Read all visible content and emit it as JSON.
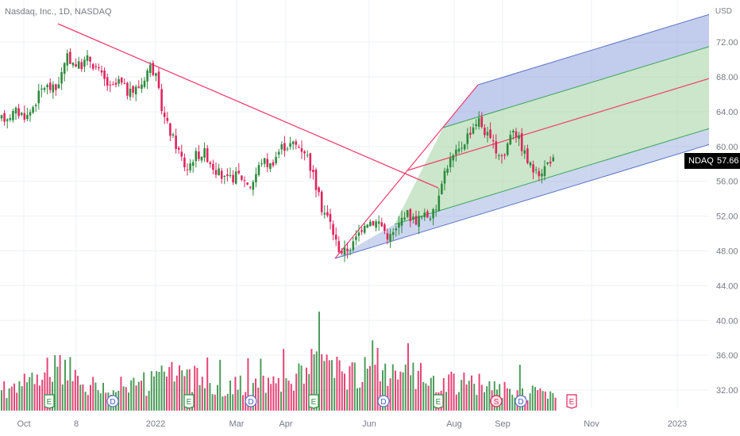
{
  "header": {
    "title": "Nasdaq, Inc., 1D, NASDAQ"
  },
  "price_tag": {
    "symbol": "NDAQ",
    "value": "57.66"
  },
  "colors": {
    "up": "#2e8b3e",
    "down": "#e0245e",
    "trendline": "#f23d6d",
    "pitchfork_median": "#f23d6d",
    "pitchfork_outer_fill": "#8fa3dc",
    "pitchfork_inner_fill": "#b5dcb3",
    "grid": "#eef0f4"
  },
  "chart_data": {
    "type": "candlestick",
    "symbol": "NDAQ",
    "timeframe": "1D",
    "exchange": "NASDAQ",
    "y_axis": {
      "unit_label": "USD",
      "range": [
        31,
        73.2
      ],
      "ticks": [
        32,
        36,
        40,
        44,
        48,
        52,
        56,
        60,
        64,
        68,
        72
      ],
      "tick_labels": [
        "32.00",
        "36.00",
        "40.00",
        "44.00",
        "48.00",
        "52.00",
        "56.00",
        "60.00",
        "64.00",
        "68.00",
        "72.00"
      ]
    },
    "x_axis": {
      "labels": [
        "Oct",
        "8",
        "2022",
        "Mar",
        "Apr",
        "Jun",
        "Aug",
        "Sep",
        "Nov",
        "2023"
      ]
    },
    "last_price": 57.66,
    "price_path": [
      {
        "x": 0,
        "y": 63.0
      },
      {
        "x": 20,
        "y": 64.0
      },
      {
        "x": 35,
        "y": 63.5
      },
      {
        "x": 55,
        "y": 67.0
      },
      {
        "x": 70,
        "y": 66.5
      },
      {
        "x": 85,
        "y": 70.2
      },
      {
        "x": 100,
        "y": 69.2
      },
      {
        "x": 112,
        "y": 70.2
      },
      {
        "x": 125,
        "y": 68.5
      },
      {
        "x": 140,
        "y": 66.5
      },
      {
        "x": 150,
        "y": 67.5
      },
      {
        "x": 163,
        "y": 66.0
      },
      {
        "x": 178,
        "y": 67.2
      },
      {
        "x": 188,
        "y": 69.3
      },
      {
        "x": 195,
        "y": 68.5
      },
      {
        "x": 205,
        "y": 63.8
      },
      {
        "x": 215,
        "y": 61.5
      },
      {
        "x": 225,
        "y": 59.5
      },
      {
        "x": 235,
        "y": 57.3
      },
      {
        "x": 245,
        "y": 59.0
      },
      {
        "x": 258,
        "y": 59.3
      },
      {
        "x": 270,
        "y": 57.5
      },
      {
        "x": 285,
        "y": 56.0
      },
      {
        "x": 300,
        "y": 56.8
      },
      {
        "x": 316,
        "y": 55.5
      },
      {
        "x": 330,
        "y": 58.5
      },
      {
        "x": 340,
        "y": 57.8
      },
      {
        "x": 355,
        "y": 60.0
      },
      {
        "x": 370,
        "y": 60.3
      },
      {
        "x": 385,
        "y": 59.5
      },
      {
        "x": 395,
        "y": 56.5
      },
      {
        "x": 405,
        "y": 53.0
      },
      {
        "x": 415,
        "y": 51.5
      },
      {
        "x": 425,
        "y": 48.5
      },
      {
        "x": 432,
        "y": 47.8
      },
      {
        "x": 445,
        "y": 48.8
      },
      {
        "x": 460,
        "y": 51.5
      },
      {
        "x": 478,
        "y": 51.3
      },
      {
        "x": 490,
        "y": 49.5
      },
      {
        "x": 500,
        "y": 50.5
      },
      {
        "x": 510,
        "y": 52.5
      },
      {
        "x": 522,
        "y": 51.5
      },
      {
        "x": 535,
        "y": 52.0
      },
      {
        "x": 548,
        "y": 52.3
      },
      {
        "x": 555,
        "y": 56.0
      },
      {
        "x": 565,
        "y": 58.2
      },
      {
        "x": 578,
        "y": 59.5
      },
      {
        "x": 590,
        "y": 61.5
      },
      {
        "x": 602,
        "y": 63.2
      },
      {
        "x": 612,
        "y": 61.5
      },
      {
        "x": 625,
        "y": 59.5
      },
      {
        "x": 635,
        "y": 58.8
      },
      {
        "x": 645,
        "y": 62.5
      },
      {
        "x": 655,
        "y": 60.5
      },
      {
        "x": 665,
        "y": 58.2
      },
      {
        "x": 675,
        "y": 56.8
      },
      {
        "x": 685,
        "y": 57.5
      },
      {
        "x": 695,
        "y": 58.8
      },
      {
        "x": 700,
        "y": 57.6
      }
    ],
    "volume_profile": [
      {
        "x": 0,
        "v": 0.45
      },
      {
        "x": 60,
        "v": 0.6
      },
      {
        "x": 62,
        "v": 1.0
      },
      {
        "x": 120,
        "v": 0.45
      },
      {
        "x": 190,
        "v": 0.55
      },
      {
        "x": 210,
        "v": 0.8
      },
      {
        "x": 240,
        "v": 0.65
      },
      {
        "x": 300,
        "v": 0.5
      },
      {
        "x": 360,
        "v": 0.55
      },
      {
        "x": 402,
        "v": 0.95
      },
      {
        "x": 440,
        "v": 0.8
      },
      {
        "x": 465,
        "v": 0.75
      },
      {
        "x": 497,
        "v": 0.97
      },
      {
        "x": 550,
        "v": 0.5
      },
      {
        "x": 600,
        "v": 0.55
      },
      {
        "x": 630,
        "v": 0.45
      },
      {
        "x": 700,
        "v": 0.3
      }
    ],
    "event_markers": [
      {
        "x": 62,
        "label": "E",
        "shape": "pentagon"
      },
      {
        "x": 142,
        "label": "D",
        "shape": "circle"
      },
      {
        "x": 238,
        "label": "E",
        "shape": "pentagon"
      },
      {
        "x": 316,
        "label": "D",
        "shape": "circle"
      },
      {
        "x": 395,
        "label": "E",
        "shape": "pentagon"
      },
      {
        "x": 483,
        "label": "D",
        "shape": "circle"
      },
      {
        "x": 552,
        "label": "E",
        "shape": "pentagon"
      },
      {
        "x": 625,
        "label": "S",
        "shape": "circle-red"
      },
      {
        "x": 656,
        "label": "D",
        "shape": "circle"
      },
      {
        "x": 720,
        "label": "E",
        "shape": "pentagon-outline"
      }
    ],
    "drawings": {
      "trendline": {
        "from": [
          73,
          73.0
        ],
        "to": [
          552,
          56.5
        ]
      },
      "pitchfork": {
        "median_origin": [
          422,
          48.0
        ],
        "median_top_pivot": [
          602,
          65.0
        ],
        "outer_bottom_left": [
          422,
          47.0
        ],
        "outer_top_right_slope": -0.0213
      }
    }
  }
}
